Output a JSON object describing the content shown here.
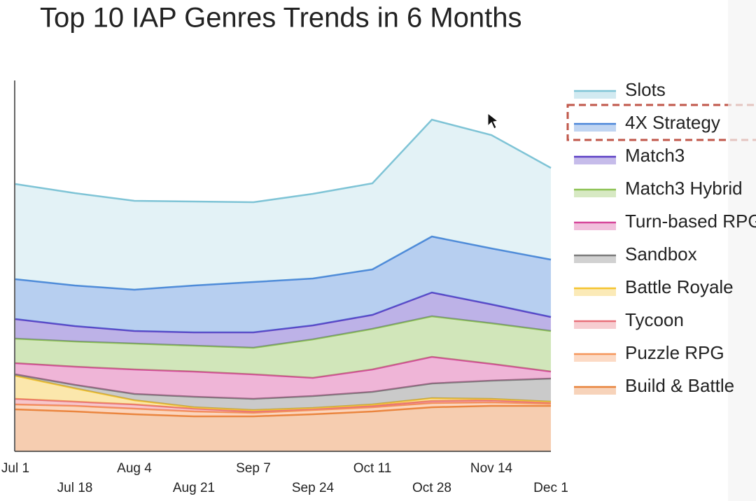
{
  "chart_data": {
    "type": "area",
    "stacked": true,
    "title": "Top 10 IAP Genres Trends in 6 Months",
    "categories": [
      "Jul 1",
      "Jul 18",
      "Aug 4",
      "Aug 21",
      "Sep 7",
      "Sep 24",
      "Oct 11",
      "Oct 28",
      "Nov 14",
      "Dec 1"
    ],
    "ylim": [
      0,
      530
    ],
    "legend": "right",
    "series": [
      {
        "name": "Build & Battle",
        "color": "#e8823a",
        "values": [
          60,
          57,
          53,
          50,
          50,
          53,
          57,
          63,
          65,
          65
        ]
      },
      {
        "name": "Puzzle RPG",
        "color": "#f5955a",
        "values": [
          7,
          8,
          8,
          7,
          5,
          6,
          6,
          6,
          5,
          3
        ]
      },
      {
        "name": "Tycoon",
        "color": "#e8707a",
        "values": [
          8,
          6,
          6,
          4,
          2,
          2,
          2,
          3,
          3,
          2
        ]
      },
      {
        "name": "Battle Royale",
        "color": "#f4c430",
        "values": [
          33,
          19,
          6,
          2,
          2,
          1,
          2,
          4,
          2,
          1
        ]
      },
      {
        "name": "Sandbox",
        "color": "#7a7a7a",
        "values": [
          2,
          5,
          9,
          15,
          16,
          17,
          18,
          21,
          26,
          33
        ]
      },
      {
        "name": "Turn-based RPG",
        "color": "#d6479a",
        "values": [
          16,
          26,
          35,
          36,
          35,
          26,
          32,
          38,
          24,
          10
        ]
      },
      {
        "name": "Match3 Hybrid",
        "color": "#8cc152",
        "values": [
          35,
          36,
          37,
          37,
          38,
          55,
          58,
          58,
          58,
          58
        ]
      },
      {
        "name": "Match3",
        "color": "#5b3fc4",
        "values": [
          28,
          22,
          18,
          19,
          22,
          20,
          20,
          34,
          27,
          20
        ]
      },
      {
        "name": "4X Strategy",
        "color": "#4a86d9",
        "values": [
          57,
          58,
          59,
          67,
          72,
          67,
          65,
          80,
          80,
          82
        ]
      },
      {
        "name": "Slots",
        "color": "#7fc4d6",
        "values": [
          136,
          132,
          127,
          120,
          114,
          121,
          123,
          167,
          162,
          131
        ]
      }
    ]
  }
}
